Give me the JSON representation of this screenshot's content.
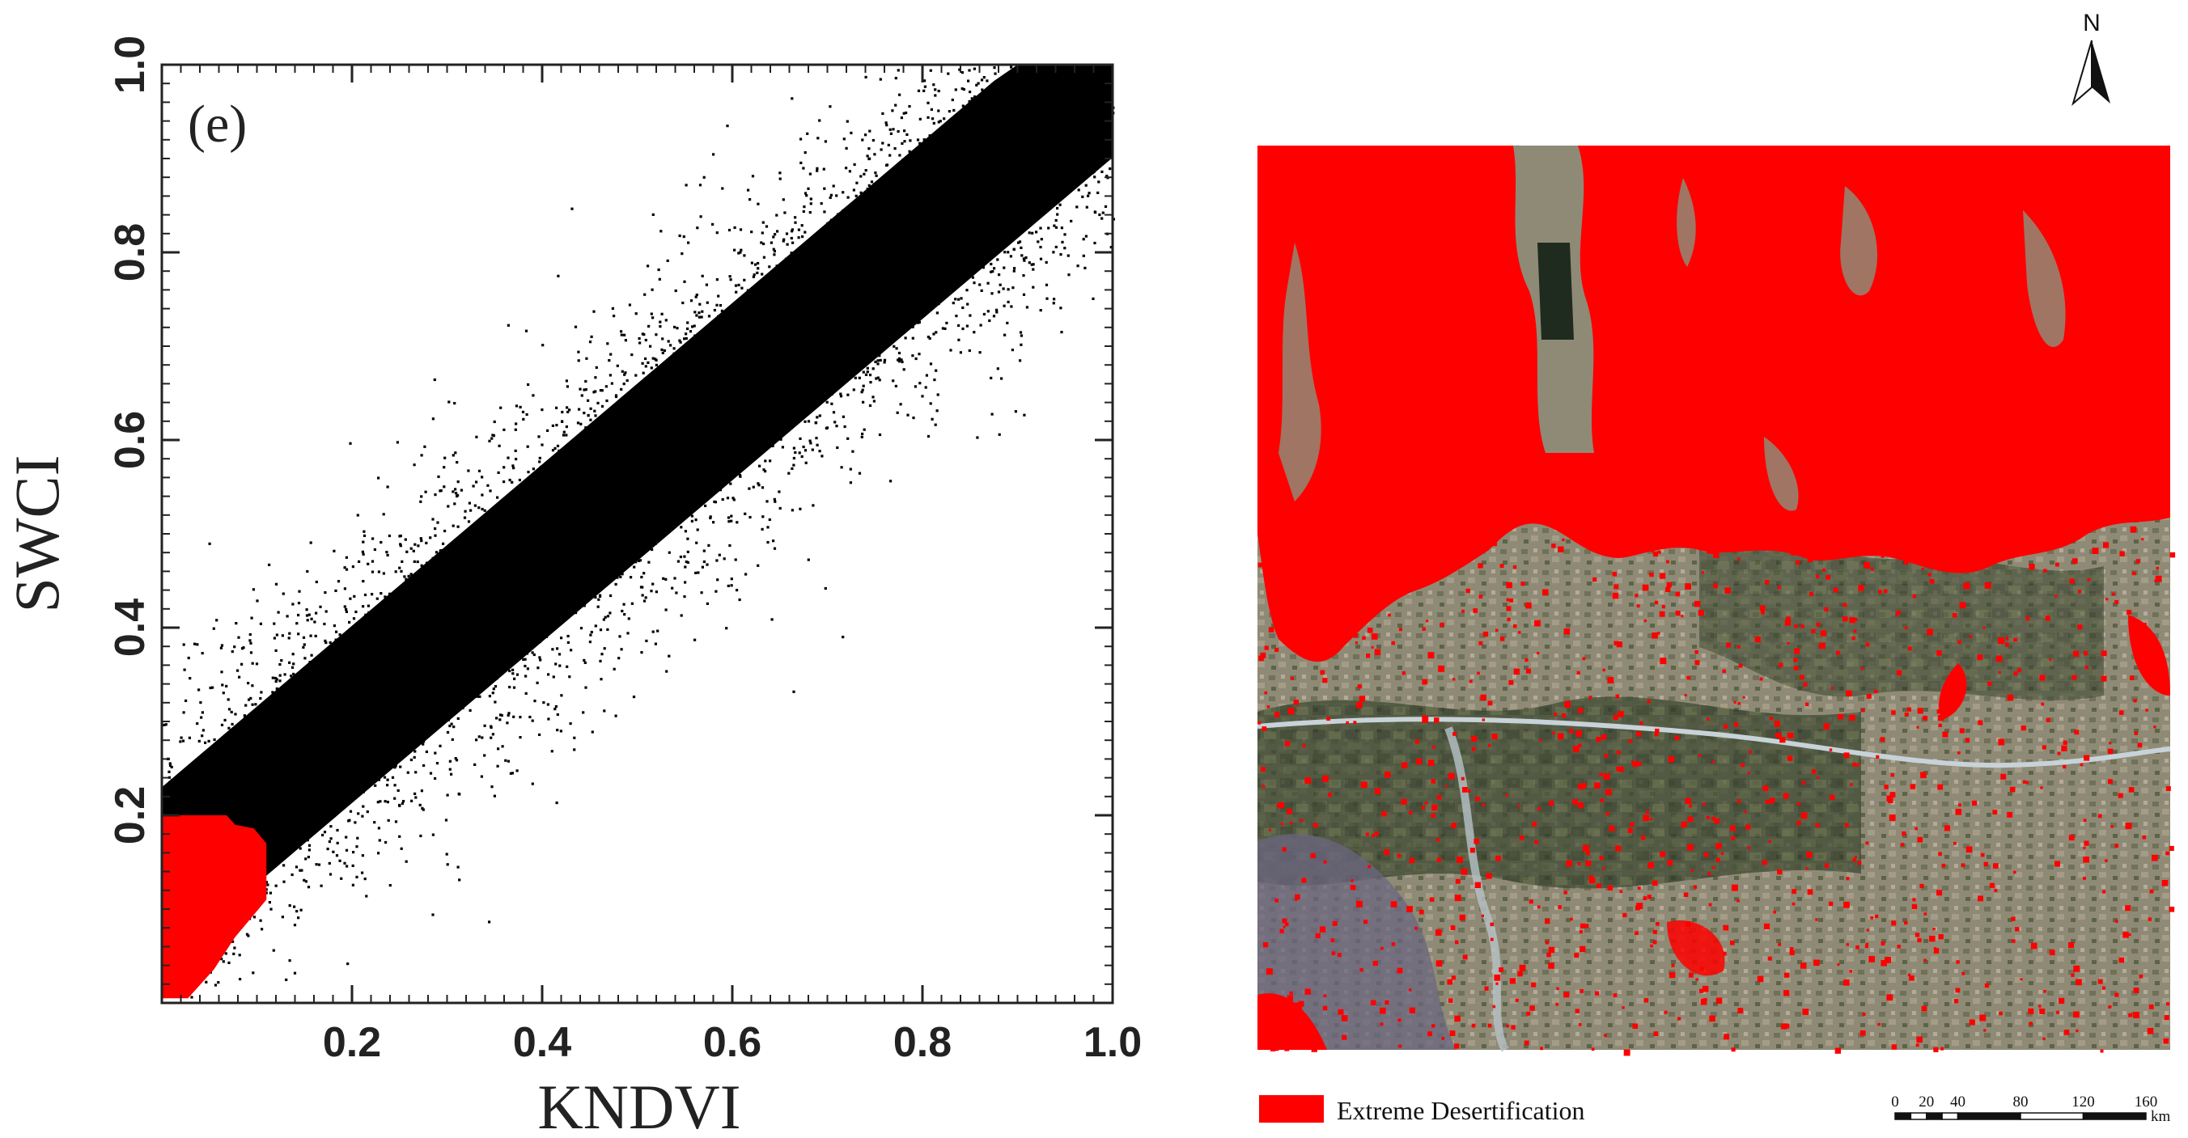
{
  "chart_data": {
    "type": "scatter",
    "panel_tag": "(e)",
    "xlabel": "KNDVI",
    "ylabel": "SWCI",
    "xlim": [
      0,
      1
    ],
    "ylim": [
      0,
      1
    ],
    "x_ticks": [
      0.2,
      0.4,
      0.6,
      0.8,
      1.0
    ],
    "x_tick_labels": [
      "0.2",
      "0.4",
      "0.6",
      "0.8",
      "1.0"
    ],
    "y_ticks": [
      0.2,
      0.4,
      0.6,
      0.8,
      1.0
    ],
    "y_tick_labels": [
      "0.2",
      "0.4",
      "0.6",
      "0.8",
      "1.0"
    ],
    "point_color": "#000000",
    "highlight_color": "#ff0000",
    "cloud_relation": {
      "intercept": 0.14,
      "slope": 0.86,
      "spread": 0.09
    },
    "highlight_region": {
      "x_max": 0.11,
      "y_max": 0.2
    },
    "grid": false,
    "legend": "none"
  },
  "map": {
    "north_label": "N",
    "legend_label": "Extreme Desertification",
    "legend_color": "#ff0000",
    "scale_labels": [
      "0",
      "20",
      "40",
      "80",
      "120",
      "160"
    ],
    "scale_unit": "km"
  }
}
